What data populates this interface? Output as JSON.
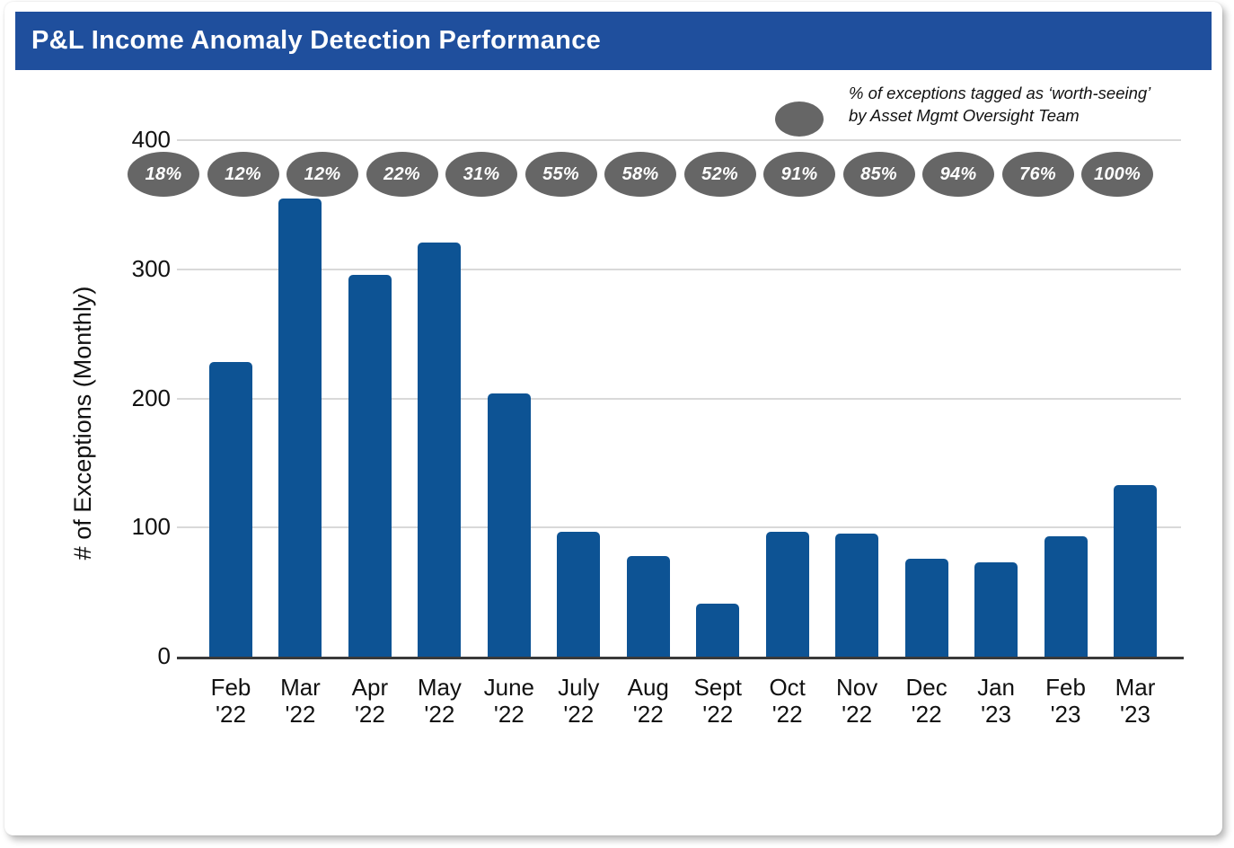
{
  "header": {
    "title": "P&L Income Anomaly Detection Performance"
  },
  "legend": {
    "line1": "% of exceptions tagged as ‘worth-seeing’",
    "line2": "by Asset Mgmt Oversight Team"
  },
  "chart_data": {
    "type": "bar",
    "title": "P&L Income Anomaly Detection Performance",
    "xlabel": "",
    "ylabel": "# of Exceptions (Monthly)",
    "ylim": [
      0,
      400
    ],
    "yticks": [
      0,
      100,
      200,
      300,
      400
    ],
    "grid": "horizontal",
    "legend_position": "top-right",
    "categories": [
      "Feb '22",
      "Mar '22",
      "Apr '22",
      "May '22",
      "June '22",
      "July '22",
      "Aug '22",
      "Sept '22",
      "Oct '22",
      "Nov '22",
      "Dec '22",
      "Jan '23",
      "Feb '23",
      "Mar '23"
    ],
    "values": [
      228,
      355,
      296,
      321,
      204,
      97,
      78,
      41,
      97,
      95,
      76,
      73,
      93,
      133
    ],
    "worth_seeing_badges": [
      "18%",
      "12%",
      "12%",
      "22%",
      "31%",
      "55%",
      "58%",
      "52%",
      "91%",
      "85%",
      "94%",
      "76%",
      "100%"
    ]
  },
  "colors": {
    "header_bg": "#1F4F9D",
    "bar": "#0D5394",
    "badge_gray": "#666666",
    "gridline": "#D9D9D9",
    "axis": "#3A3A3A"
  }
}
